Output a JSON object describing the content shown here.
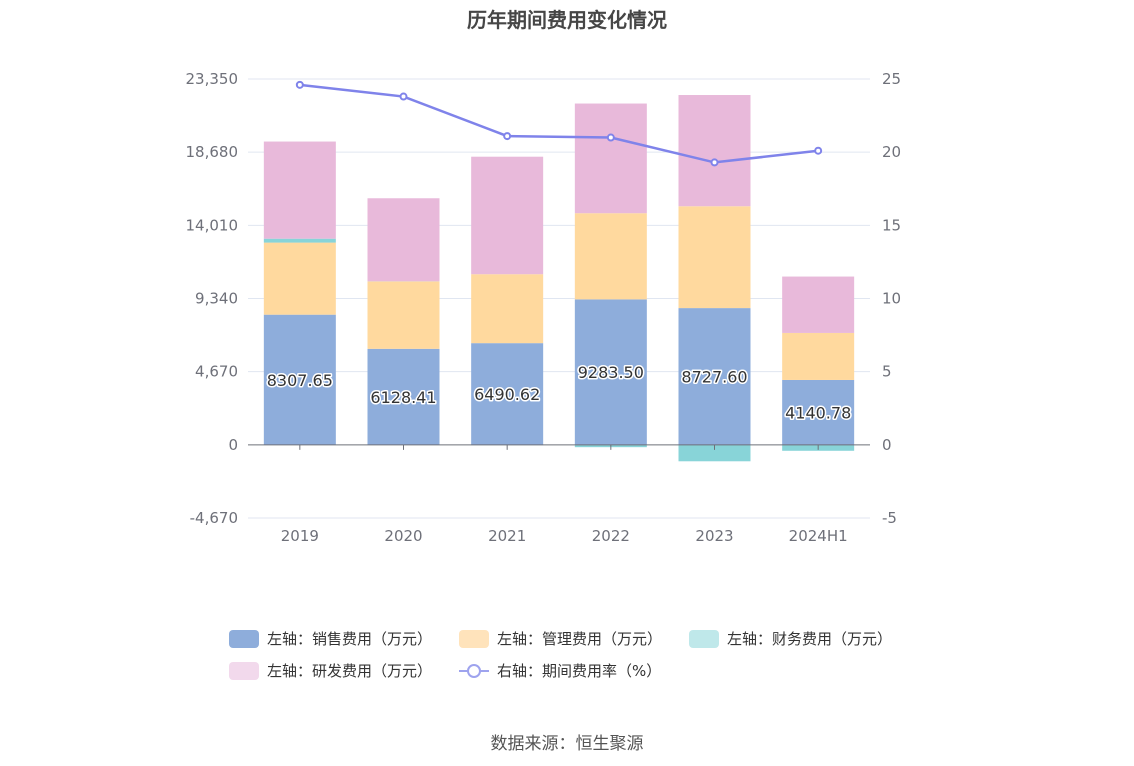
{
  "title": "历年期间费用变化情况",
  "source": "数据来源：恒生聚源",
  "colors": {
    "sales": "#8eaddb",
    "admin": "#ffd99e",
    "finance": "#88d4d8",
    "rd": "#e8b9da",
    "rate": "#7f83ea"
  },
  "legend": [
    {
      "key": "sales",
      "label": "左轴：销售费用（万元）",
      "color": "#8eaddb",
      "kind": "box"
    },
    {
      "key": "admin",
      "label": "左轴：管理费用（万元）",
      "color": "#ffe3bb",
      "kind": "box"
    },
    {
      "key": "finance",
      "label": "左轴：财务费用（万元）",
      "color": "#bfe8ea",
      "kind": "box"
    },
    {
      "key": "rd",
      "label": "左轴：研发费用（万元）",
      "color": "#f2d9ec",
      "kind": "box"
    },
    {
      "key": "rate",
      "label": "右轴：期间费用率（%）",
      "color": "#9ea3ee",
      "kind": "line"
    }
  ],
  "chart_data": {
    "type": "bar",
    "title": "历年期间费用变化情况",
    "categories": [
      "2019",
      "2020",
      "2021",
      "2022",
      "2023",
      "2024H1"
    ],
    "left_axis": {
      "ticks": [
        "23,350",
        "18,680",
        "14,010",
        "9,340",
        "4,670",
        "0",
        "-4,670"
      ],
      "ylim": [
        -4670,
        23350
      ]
    },
    "right_axis": {
      "ticks": [
        "25",
        "20",
        "15",
        "10",
        "5",
        "0",
        "-5"
      ],
      "ylim": [
        -5,
        25
      ]
    },
    "series": [
      {
        "name": "左轴：销售费用（万元）",
        "key": "sales",
        "axis": "left",
        "stack": true,
        "values": [
          8307.65,
          6128.41,
          6490.62,
          9283.5,
          8727.6,
          4140.78
        ],
        "labels": [
          "8307.65",
          "6128.41",
          "6490.62",
          "9283.50",
          "8727.60",
          "4140.78"
        ]
      },
      {
        "name": "左轴：管理费用（万元）",
        "key": "admin",
        "axis": "left",
        "stack": true,
        "values": [
          4600,
          4300,
          4400,
          5500,
          6500,
          3000
        ]
      },
      {
        "name": "左轴：财务费用（万元）",
        "key": "finance",
        "axis": "left",
        "stack": true,
        "values": [
          250,
          10,
          -20,
          -150,
          -1050,
          -380
        ]
      },
      {
        "name": "左轴：研发费用（万元）",
        "key": "rd",
        "axis": "left",
        "stack": true,
        "values": [
          6200,
          5300,
          7500,
          7000,
          7100,
          3600
        ]
      },
      {
        "name": "右轴：期间费用率（%）",
        "key": "rate",
        "axis": "right",
        "type": "line",
        "values": [
          24.6,
          23.8,
          21.1,
          21.0,
          19.3,
          20.1
        ]
      }
    ],
    "grid": true,
    "legend_position": "bottom"
  }
}
